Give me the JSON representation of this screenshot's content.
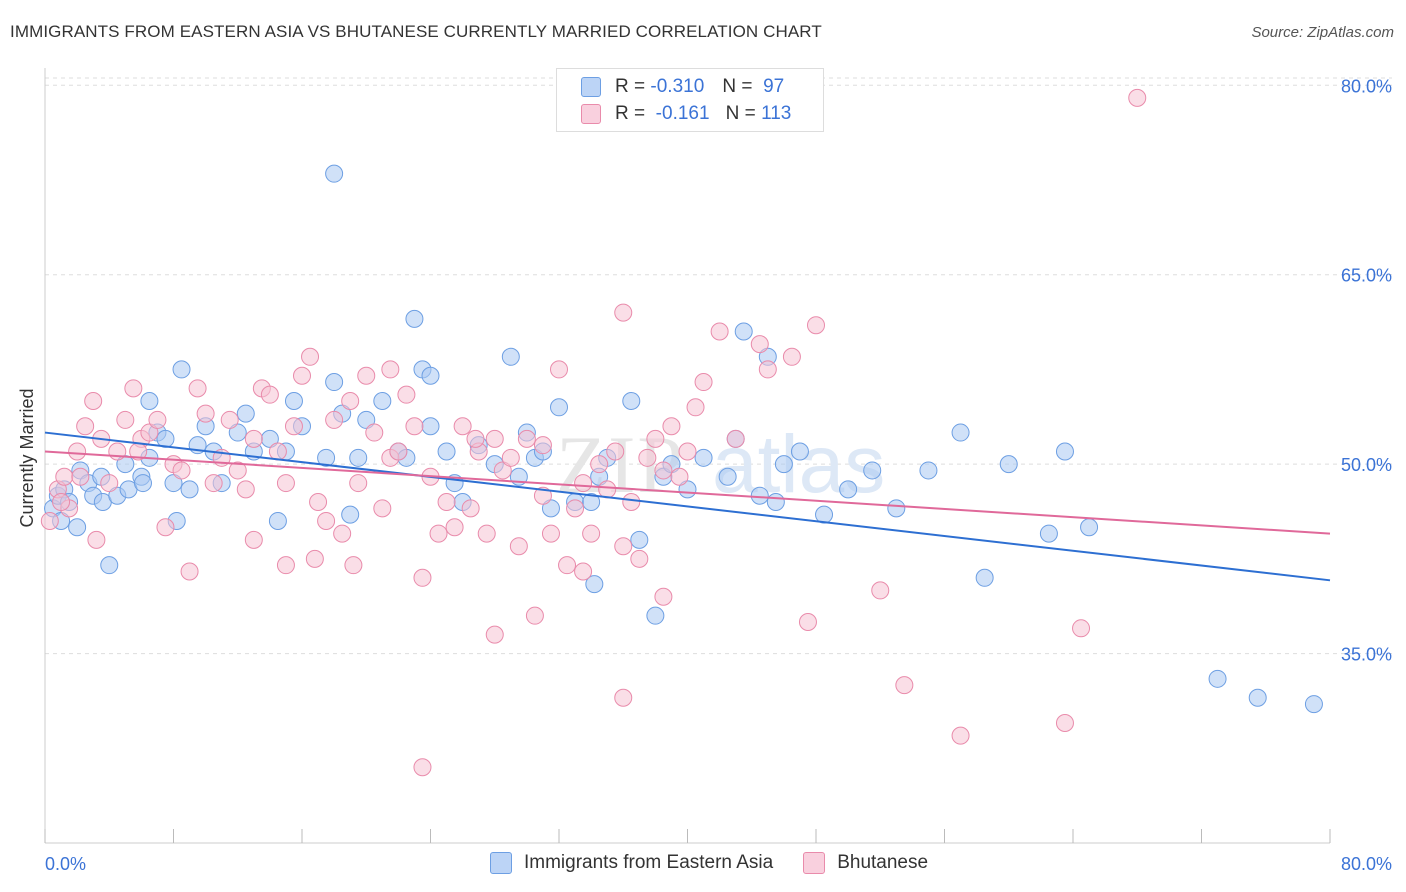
{
  "header": {
    "title": "IMMIGRANTS FROM EASTERN ASIA VS BHUTANESE CURRENTLY MARRIED CORRELATION CHART",
    "source": "Source: ZipAtlas.com"
  },
  "legend": {
    "rows": [
      {
        "r_label": "R =",
        "r_value": "-0.310",
        "n_label": "N =",
        "n_value": "97"
      },
      {
        "r_label": "R =",
        "r_value": "-0.161",
        "n_label": "N =",
        "n_value": "113"
      }
    ]
  },
  "watermark": {
    "zip": "ZIP",
    "atlas": "atlas"
  },
  "colors": {
    "blue_fill": "#a9c8f3",
    "blue_stroke": "#6d9fe3",
    "blue_line": "#2d6fd2",
    "pink_fill": "#f6c3d3",
    "pink_stroke": "#e98bab",
    "pink_line": "#e0699a",
    "tick_label": "#3b73d6",
    "grid": "#dddddd"
  },
  "chart_data": {
    "type": "scatter",
    "title": "IMMIGRANTS FROM EASTERN ASIA VS BHUTANESE CURRENTLY MARRIED CORRELATION CHART",
    "xlabel": "",
    "ylabel": "Currently Married",
    "xlim": [
      0,
      80
    ],
    "ylim": [
      20,
      82
    ],
    "x_tick_labels": [
      "0.0%",
      "80.0%"
    ],
    "y_ticks": [
      35,
      50,
      65,
      80
    ],
    "y_tick_labels": [
      "35.0%",
      "50.0%",
      "65.0%",
      "80.0%"
    ],
    "grid": true,
    "legend_position": "top-center",
    "series": [
      {
        "name": "Immigrants from Eastern Asia",
        "r": -0.31,
        "n": 97,
        "trend": {
          "x": [
            0,
            80
          ],
          "y": [
            52.5,
            40.8
          ]
        },
        "points": [
          [
            0.5,
            46.5
          ],
          [
            0.8,
            47.5
          ],
          [
            1.0,
            45.5
          ],
          [
            1.2,
            48.0
          ],
          [
            1.5,
            47.0
          ],
          [
            2.0,
            45.0
          ],
          [
            2.2,
            49.5
          ],
          [
            2.7,
            48.5
          ],
          [
            3.0,
            47.5
          ],
          [
            3.5,
            49.0
          ],
          [
            3.6,
            47.0
          ],
          [
            4.0,
            42.0
          ],
          [
            4.5,
            47.5
          ],
          [
            5.0,
            50.0
          ],
          [
            5.2,
            48.0
          ],
          [
            6.0,
            49.0
          ],
          [
            6.1,
            48.5
          ],
          [
            6.5,
            50.5
          ],
          [
            7.0,
            52.5
          ],
          [
            7.5,
            52.0
          ],
          [
            8.0,
            48.5
          ],
          [
            8.2,
            45.5
          ],
          [
            9.0,
            48.0
          ],
          [
            9.5,
            51.5
          ],
          [
            10.0,
            53.0
          ],
          [
            10.5,
            51.0
          ],
          [
            11.0,
            48.5
          ],
          [
            12.0,
            52.5
          ],
          [
            12.5,
            54.0
          ],
          [
            13.0,
            51.0
          ],
          [
            14.0,
            52.0
          ],
          [
            14.5,
            45.5
          ],
          [
            15.0,
            51.0
          ],
          [
            15.5,
            55.0
          ],
          [
            16.0,
            53.0
          ],
          [
            17.5,
            50.5
          ],
          [
            18.0,
            56.5
          ],
          [
            18.5,
            54.0
          ],
          [
            19.0,
            46.0
          ],
          [
            19.5,
            50.5
          ],
          [
            20.0,
            53.5
          ],
          [
            21.0,
            55.0
          ],
          [
            22.0,
            51.0
          ],
          [
            22.5,
            50.5
          ],
          [
            23.0,
            61.5
          ],
          [
            23.5,
            57.5
          ],
          [
            24.0,
            53.0
          ],
          [
            25.0,
            51.0
          ],
          [
            25.5,
            48.5
          ],
          [
            26.0,
            47.0
          ],
          [
            27.0,
            51.5
          ],
          [
            28.0,
            50.0
          ],
          [
            29.0,
            58.5
          ],
          [
            29.5,
            49.0
          ],
          [
            30.0,
            52.5
          ],
          [
            30.5,
            50.5
          ],
          [
            31.0,
            51.0
          ],
          [
            31.5,
            46.5
          ],
          [
            32.0,
            54.5
          ],
          [
            33.0,
            47.0
          ],
          [
            34.0,
            47.0
          ],
          [
            34.2,
            40.5
          ],
          [
            34.5,
            49.0
          ],
          [
            35.0,
            50.5
          ],
          [
            36.5,
            55.0
          ],
          [
            37.0,
            44.0
          ],
          [
            38.0,
            38.0
          ],
          [
            38.5,
            49.0
          ],
          [
            39.0,
            50.0
          ],
          [
            40.0,
            48.0
          ],
          [
            41.0,
            50.5
          ],
          [
            42.5,
            49.0
          ],
          [
            43.0,
            52.0
          ],
          [
            43.5,
            60.5
          ],
          [
            44.5,
            47.5
          ],
          [
            45.0,
            58.5
          ],
          [
            45.5,
            47.0
          ],
          [
            46.0,
            50.0
          ],
          [
            47.0,
            51.0
          ],
          [
            48.5,
            46.0
          ],
          [
            50.0,
            48.0
          ],
          [
            51.5,
            49.5
          ],
          [
            53.0,
            46.5
          ],
          [
            55.0,
            49.5
          ],
          [
            57.0,
            52.5
          ],
          [
            58.5,
            41.0
          ],
          [
            60.0,
            50.0
          ],
          [
            62.5,
            44.5
          ],
          [
            63.5,
            51.0
          ],
          [
            65.0,
            45.0
          ],
          [
            73.0,
            33.0
          ],
          [
            75.5,
            31.5
          ],
          [
            79.0,
            31.0
          ],
          [
            8.5,
            57.5
          ],
          [
            6.5,
            55.0
          ],
          [
            18.0,
            73.0
          ],
          [
            24.0,
            57.0
          ]
        ]
      },
      {
        "name": "Bhutanese",
        "r": -0.161,
        "n": 113,
        "trend": {
          "x": [
            0,
            80
          ],
          "y": [
            51.0,
            44.5
          ]
        },
        "points": [
          [
            0.3,
            45.5
          ],
          [
            0.8,
            48.0
          ],
          [
            1.2,
            49.0
          ],
          [
            1.5,
            46.5
          ],
          [
            2.0,
            51.0
          ],
          [
            2.5,
            53.0
          ],
          [
            3.0,
            55.0
          ],
          [
            3.2,
            44.0
          ],
          [
            3.5,
            52.0
          ],
          [
            4.0,
            48.5
          ],
          [
            4.5,
            51.0
          ],
          [
            5.0,
            53.5
          ],
          [
            5.5,
            56.0
          ],
          [
            6.0,
            52.0
          ],
          [
            6.5,
            52.5
          ],
          [
            7.0,
            53.5
          ],
          [
            7.5,
            45.0
          ],
          [
            8.0,
            50.0
          ],
          [
            8.5,
            49.5
          ],
          [
            9.0,
            41.5
          ],
          [
            9.5,
            56.0
          ],
          [
            10.0,
            54.0
          ],
          [
            10.5,
            48.5
          ],
          [
            11.0,
            50.5
          ],
          [
            11.5,
            53.5
          ],
          [
            12.0,
            49.5
          ],
          [
            12.5,
            48.0
          ],
          [
            13.0,
            52.0
          ],
          [
            13.5,
            56.0
          ],
          [
            14.0,
            55.5
          ],
          [
            14.5,
            51.0
          ],
          [
            15.0,
            48.5
          ],
          [
            15.5,
            53.0
          ],
          [
            16.0,
            57.0
          ],
          [
            16.5,
            58.5
          ],
          [
            17.0,
            47.0
          ],
          [
            17.5,
            45.5
          ],
          [
            18.0,
            53.5
          ],
          [
            18.5,
            44.5
          ],
          [
            19.0,
            55.0
          ],
          [
            19.5,
            48.5
          ],
          [
            20.0,
            57.0
          ],
          [
            20.5,
            52.5
          ],
          [
            21.0,
            46.5
          ],
          [
            21.5,
            50.5
          ],
          [
            22.0,
            51.0
          ],
          [
            22.5,
            55.5
          ],
          [
            23.0,
            53.0
          ],
          [
            23.5,
            41.0
          ],
          [
            24.0,
            49.0
          ],
          [
            24.5,
            44.5
          ],
          [
            25.0,
            47.0
          ],
          [
            25.5,
            45.0
          ],
          [
            26.0,
            53.0
          ],
          [
            26.5,
            46.5
          ],
          [
            27.0,
            51.0
          ],
          [
            27.5,
            44.5
          ],
          [
            28.0,
            52.0
          ],
          [
            28.5,
            49.5
          ],
          [
            29.0,
            50.5
          ],
          [
            29.5,
            43.5
          ],
          [
            30.0,
            52.0
          ],
          [
            30.5,
            38.0
          ],
          [
            31.0,
            47.5
          ],
          [
            31.5,
            44.5
          ],
          [
            32.0,
            57.5
          ],
          [
            32.5,
            42.0
          ],
          [
            33.0,
            46.5
          ],
          [
            33.5,
            41.5
          ],
          [
            34.0,
            44.5
          ],
          [
            34.5,
            50.0
          ],
          [
            35.0,
            48.0
          ],
          [
            35.5,
            51.0
          ],
          [
            36.0,
            43.5
          ],
          [
            36.5,
            47.0
          ],
          [
            37.0,
            42.5
          ],
          [
            37.5,
            50.5
          ],
          [
            38.0,
            52.0
          ],
          [
            38.5,
            49.5
          ],
          [
            39.0,
            53.0
          ],
          [
            39.5,
            49.0
          ],
          [
            40.0,
            51.0
          ],
          [
            40.5,
            54.5
          ],
          [
            41.0,
            56.5
          ],
          [
            42.0,
            60.5
          ],
          [
            43.0,
            52.0
          ],
          [
            44.5,
            59.5
          ],
          [
            36.0,
            31.5
          ],
          [
            28.0,
            36.5
          ],
          [
            23.5,
            26.0
          ],
          [
            36.0,
            62.0
          ],
          [
            45.0,
            57.5
          ],
          [
            47.5,
            37.5
          ],
          [
            52.0,
            40.0
          ],
          [
            57.0,
            28.5
          ],
          [
            63.5,
            29.5
          ],
          [
            64.5,
            37.0
          ],
          [
            68.0,
            79.0
          ],
          [
            38.5,
            39.5
          ],
          [
            1.0,
            47.0
          ],
          [
            2.2,
            49.0
          ],
          [
            5.8,
            51.0
          ],
          [
            13.0,
            44.0
          ],
          [
            15.0,
            42.0
          ],
          [
            16.8,
            42.5
          ],
          [
            19.2,
            42.0
          ],
          [
            21.5,
            57.5
          ],
          [
            26.8,
            52.0
          ],
          [
            31.0,
            51.5
          ],
          [
            33.5,
            48.5
          ],
          [
            46.5,
            58.5
          ],
          [
            53.5,
            32.5
          ],
          [
            48.0,
            61.0
          ]
        ]
      }
    ]
  },
  "bottom_legend": [
    {
      "label": "Immigrants from Eastern Asia"
    },
    {
      "label": "Bhutanese"
    }
  ]
}
